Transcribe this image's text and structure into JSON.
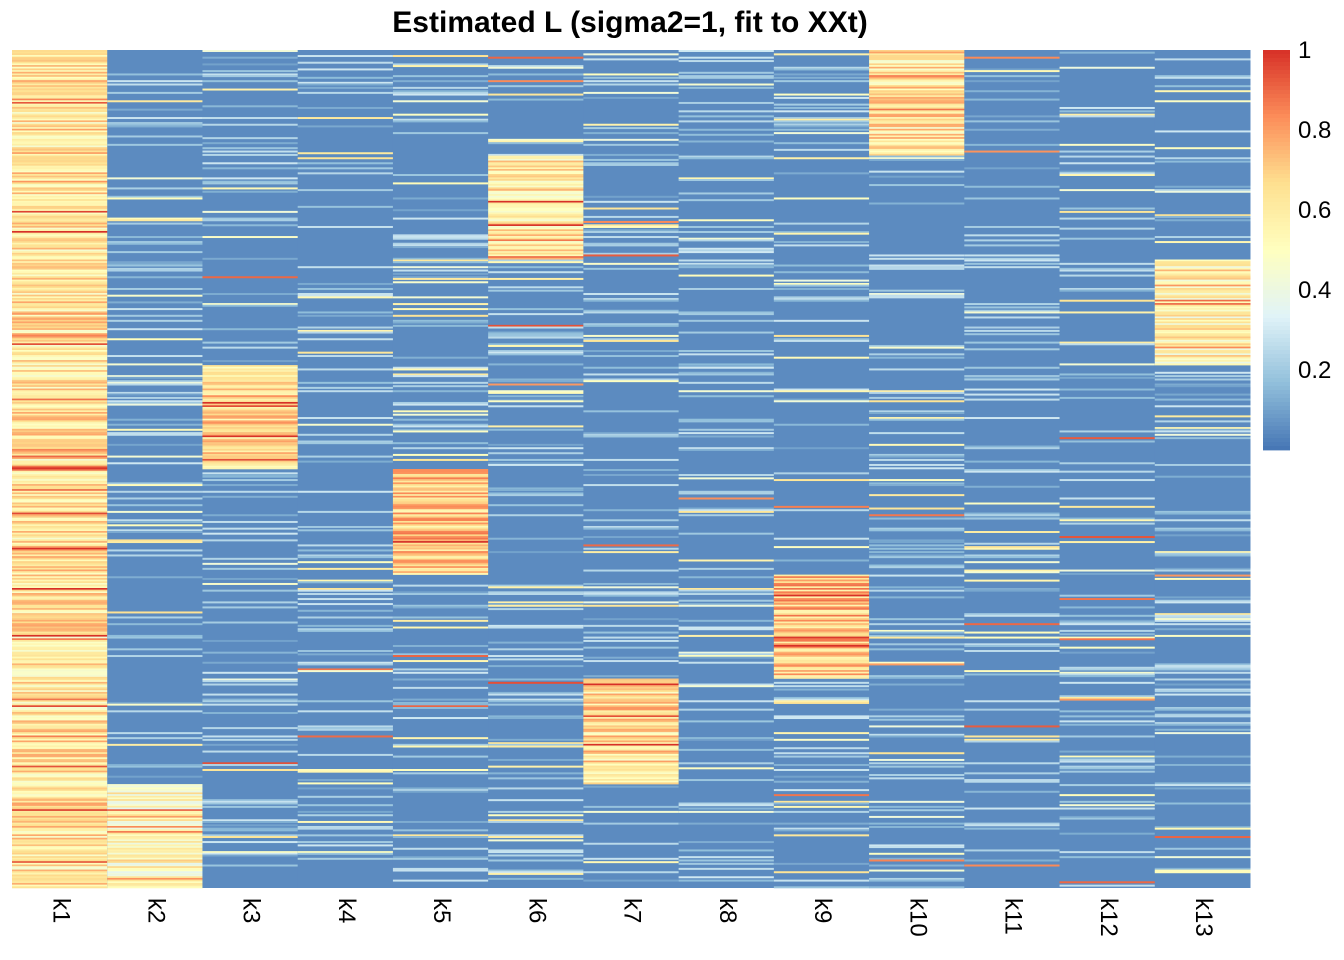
{
  "chart_data": {
    "type": "heatmap",
    "title": "Estimated L (sigma2=1, fit to XXt)",
    "xlabel": "",
    "ylabel": "",
    "categories": [
      "k1",
      "k2",
      "k3",
      "k4",
      "k5",
      "k6",
      "k7",
      "k8",
      "k9",
      "k10",
      "k11",
      "k12",
      "k13"
    ],
    "n_rows": 1000,
    "value_range": [
      0,
      1
    ],
    "colorbar": {
      "ticks": [
        "0.2",
        "0.4",
        "0.6",
        "0.8",
        "1"
      ],
      "tick_values": [
        0.2,
        0.4,
        0.6,
        0.8,
        1.0
      ],
      "colors": [
        "#4575b4",
        "#91bfdb",
        "#e0f3f8",
        "#ffffbf",
        "#fee090",
        "#fc8d59",
        "#d73027"
      ],
      "placement": "right"
    },
    "blocks": [
      {
        "column": "k1",
        "row_start": 0,
        "row_end": 1000,
        "typical_value": 0.62
      },
      {
        "column": "k10",
        "row_start": 0,
        "row_end": 125,
        "typical_value": 0.62
      },
      {
        "column": "k6",
        "row_start": 125,
        "row_end": 250,
        "typical_value": 0.6
      },
      {
        "column": "k13",
        "row_start": 250,
        "row_end": 375,
        "typical_value": 0.55
      },
      {
        "column": "k3",
        "row_start": 375,
        "row_end": 500,
        "typical_value": 0.66
      },
      {
        "column": "k5",
        "row_start": 500,
        "row_end": 625,
        "typical_value": 0.7
      },
      {
        "column": "k9",
        "row_start": 625,
        "row_end": 750,
        "typical_value": 0.72
      },
      {
        "column": "k7",
        "row_start": 750,
        "row_end": 875,
        "typical_value": 0.64
      },
      {
        "column": "k2",
        "row_start": 875,
        "row_end": 1000,
        "typical_value": 0.52
      }
    ],
    "background_value": 0.05,
    "legend": "none"
  }
}
